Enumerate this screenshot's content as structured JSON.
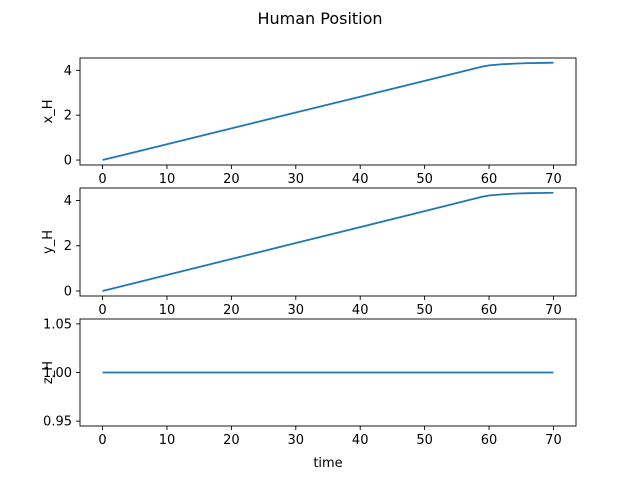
{
  "figure": {
    "title": "Human Position"
  },
  "chart_data": [
    {
      "type": "line",
      "title": "",
      "xlabel": "",
      "ylabel": "x_H",
      "xlim": [
        -3.5,
        73.5
      ],
      "ylim": [
        -0.22,
        4.55
      ],
      "xticks": [
        0,
        10,
        20,
        30,
        40,
        50,
        60,
        70
      ],
      "yticks": [
        0,
        2,
        4
      ],
      "ytick_labels": [
        "0",
        "2",
        "4"
      ],
      "grid": false,
      "color": "#1f77b4",
      "series": [
        {
          "x": [
            0,
            10,
            20,
            30,
            40,
            50,
            59,
            60,
            62,
            64,
            66,
            68,
            70
          ],
          "y": [
            0,
            0.706,
            1.412,
            2.118,
            2.824,
            3.53,
            4.17,
            4.22,
            4.27,
            4.3,
            4.32,
            4.33,
            4.34
          ]
        }
      ]
    },
    {
      "type": "line",
      "title": "",
      "xlabel": "",
      "ylabel": "y_H",
      "xlim": [
        -3.5,
        73.5
      ],
      "ylim": [
        -0.22,
        4.55
      ],
      "xticks": [
        0,
        10,
        20,
        30,
        40,
        50,
        60,
        70
      ],
      "yticks": [
        0,
        2,
        4
      ],
      "ytick_labels": [
        "0",
        "2",
        "4"
      ],
      "grid": false,
      "color": "#1f77b4",
      "series": [
        {
          "x": [
            0,
            10,
            20,
            30,
            40,
            50,
            59,
            60,
            62,
            64,
            66,
            68,
            70
          ],
          "y": [
            0,
            0.706,
            1.412,
            2.118,
            2.824,
            3.53,
            4.17,
            4.22,
            4.27,
            4.3,
            4.32,
            4.33,
            4.34
          ]
        }
      ]
    },
    {
      "type": "line",
      "title": "",
      "xlabel": "time",
      "ylabel": "z_H",
      "xlim": [
        -3.5,
        73.5
      ],
      "ylim": [
        0.945,
        1.055
      ],
      "xticks": [
        0,
        10,
        20,
        30,
        40,
        50,
        60,
        70
      ],
      "yticks": [
        0.95,
        1.0,
        1.05
      ],
      "ytick_labels": [
        "0.95",
        "1.00",
        "1.05"
      ],
      "grid": false,
      "color": "#1f77b4",
      "series": [
        {
          "x": [
            0,
            70
          ],
          "y": [
            1.0,
            1.0
          ]
        }
      ]
    }
  ]
}
